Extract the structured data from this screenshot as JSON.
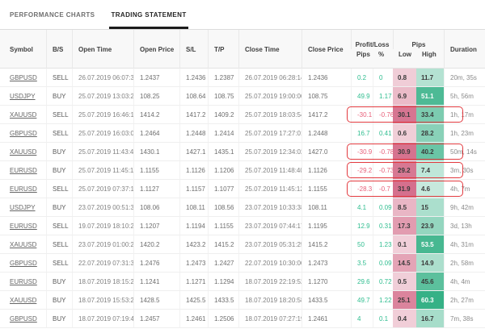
{
  "tabs": [
    {
      "label": "PERFORMANCE CHARTS",
      "active": false
    },
    {
      "label": "TRADING STATEMENT",
      "active": true
    }
  ],
  "table": {
    "group_headers": {
      "profit_loss": "Profit/Loss",
      "pips": "Pips"
    },
    "headers": {
      "symbol": "Symbol",
      "bs": "B/S",
      "open_time": "Open Time",
      "open_price": "Open Price",
      "sl": "S/L",
      "tp": "T/P",
      "close_time": "Close Time",
      "close_price": "Close Price",
      "pl_pips": "Pips",
      "pl_percent": "%",
      "low": "Low",
      "high": "High",
      "duration": "Duration"
    },
    "rows": [
      {
        "symbol": "GBPUSD",
        "side": "SELL",
        "open_time": "26.07.2019 06:07:39",
        "open_price": "1.2437",
        "sl": "1.2436",
        "tp": "1.2387",
        "close_time": "26.07.2019 06:28:14",
        "close_price": "1.2436",
        "pl_pips": "0.2",
        "pl_percent": "0",
        "low": "0.8",
        "high": "11.7",
        "duration": "20m, 35s",
        "highlighted": false
      },
      {
        "symbol": "USDJPY",
        "side": "BUY",
        "open_time": "25.07.2019 13:03:23",
        "open_price": "108.25",
        "sl": "108.64",
        "tp": "108.75",
        "close_time": "25.07.2019 19:00:00",
        "close_price": "108.75",
        "pl_pips": "49.9",
        "pl_percent": "1.17",
        "low": "6.9",
        "high": "51.1",
        "duration": "5h, 56m",
        "highlighted": false
      },
      {
        "symbol": "XAUUSD",
        "side": "SELL",
        "open_time": "25.07.2019 16:46:16",
        "open_price": "1414.2",
        "sl": "1417.2",
        "tp": "1409.2",
        "close_time": "25.07.2019 18:03:54",
        "close_price": "1417.2",
        "pl_pips": "-30.1",
        "pl_percent": "-0.76",
        "low": "30.1",
        "high": "33.4",
        "duration": "1h, 17m",
        "highlighted": true
      },
      {
        "symbol": "GBPUSD",
        "side": "SELL",
        "open_time": "25.07.2019 16:03:06",
        "open_price": "1.2464",
        "sl": "1.2448",
        "tp": "1.2414",
        "close_time": "25.07.2019 17:27:01",
        "close_price": "1.2448",
        "pl_pips": "16.7",
        "pl_percent": "0.41",
        "low": "0.6",
        "high": "28.2",
        "duration": "1h, 23m",
        "highlighted": false
      },
      {
        "symbol": "XAUUSD",
        "side": "BUY",
        "open_time": "25.07.2019 11:43:48",
        "open_price": "1430.1",
        "sl": "1427.1",
        "tp": "1435.1",
        "close_time": "25.07.2019 12:34:02",
        "close_price": "1427.0",
        "pl_pips": "-30.9",
        "pl_percent": "-0.78",
        "low": "30.9",
        "high": "40.2",
        "duration": "50m, 14s",
        "highlighted": true
      },
      {
        "symbol": "EURUSD",
        "side": "BUY",
        "open_time": "25.07.2019 11:45:10",
        "open_price": "1.1155",
        "sl": "1.1126",
        "tp": "1.1206",
        "close_time": "25.07.2019 11:48:40",
        "close_price": "1.1126",
        "pl_pips": "-29.2",
        "pl_percent": "-0.73",
        "low": "29.2",
        "high": "7.4",
        "duration": "3m, 30s",
        "highlighted": true
      },
      {
        "symbol": "EURUSD",
        "side": "SELL",
        "open_time": "25.07.2019 07:37:14",
        "open_price": "1.1127",
        "sl": "1.1157",
        "tp": "1.1077",
        "close_time": "25.07.2019 11:45:12",
        "close_price": "1.1155",
        "pl_pips": "-28.3",
        "pl_percent": "-0.7",
        "low": "31.9",
        "high": "4.6",
        "duration": "4h, 7m",
        "highlighted": true
      },
      {
        "symbol": "USDJPY",
        "side": "BUY",
        "open_time": "23.07.2019 00:51:31",
        "open_price": "108.06",
        "sl": "108.11",
        "tp": "108.56",
        "close_time": "23.07.2019 10:33:38",
        "close_price": "108.11",
        "pl_pips": "4.1",
        "pl_percent": "0.09",
        "low": "8.5",
        "high": "15",
        "duration": "9h, 42m",
        "highlighted": false
      },
      {
        "symbol": "EURUSD",
        "side": "SELL",
        "open_time": "19.07.2019 18:10:23",
        "open_price": "1.1207",
        "sl": "1.1194",
        "tp": "1.1155",
        "close_time": "23.07.2019 07:44:17",
        "close_price": "1.1195",
        "pl_pips": "12.9",
        "pl_percent": "0.31",
        "low": "17.3",
        "high": "23.9",
        "duration": "3d, 13h",
        "highlighted": false
      },
      {
        "symbol": "XAUUSD",
        "side": "SELL",
        "open_time": "23.07.2019 01:00:21",
        "open_price": "1420.2",
        "sl": "1423.2",
        "tp": "1415.2",
        "close_time": "23.07.2019 05:31:25",
        "close_price": "1415.2",
        "pl_pips": "50",
        "pl_percent": "1.23",
        "low": "0.1",
        "high": "53.5",
        "duration": "4h, 31m",
        "highlighted": false
      },
      {
        "symbol": "GBPUSD",
        "side": "SELL",
        "open_time": "22.07.2019 07:31:34",
        "open_price": "1.2476",
        "sl": "1.2473",
        "tp": "1.2427",
        "close_time": "22.07.2019 10:30:00",
        "close_price": "1.2473",
        "pl_pips": "3.5",
        "pl_percent": "0.09",
        "low": "14.5",
        "high": "14.9",
        "duration": "2h, 58m",
        "highlighted": false
      },
      {
        "symbol": "EURUSD",
        "side": "BUY",
        "open_time": "18.07.2019 18:15:20",
        "open_price": "1.1241",
        "sl": "1.1271",
        "tp": "1.1294",
        "close_time": "18.07.2019 22:19:52",
        "close_price": "1.1270",
        "pl_pips": "29.6",
        "pl_percent": "0.72",
        "low": "0.5",
        "high": "45.6",
        "duration": "4h, 4m",
        "highlighted": false
      },
      {
        "symbol": "XAUUSD",
        "side": "BUY",
        "open_time": "18.07.2019 15:53:21",
        "open_price": "1428.5",
        "sl": "1425.5",
        "tp": "1433.5",
        "close_time": "18.07.2019 18:20:58",
        "close_price": "1433.5",
        "pl_pips": "49.7",
        "pl_percent": "1.22",
        "low": "25.1",
        "high": "60.3",
        "duration": "2h, 27m",
        "highlighted": false
      },
      {
        "symbol": "GBPUSD",
        "side": "BUY",
        "open_time": "18.07.2019 07:19:41",
        "open_price": "1.2457",
        "sl": "1.2461",
        "tp": "1.2506",
        "close_time": "18.07.2019 07:27:19",
        "close_price": "1.2461",
        "pl_pips": "4",
        "pl_percent": "0.1",
        "low": "0.4",
        "high": "16.7",
        "duration": "7m, 38s",
        "highlighted": false
      }
    ]
  },
  "colors": {
    "positive_text": "#2fbd8f",
    "negative_text": "#e8607a",
    "low_base": "#d06080",
    "high_base": "#35b186",
    "highlight_outline": "#e23a3f",
    "active_tab_underline": "#1c1c1c"
  }
}
